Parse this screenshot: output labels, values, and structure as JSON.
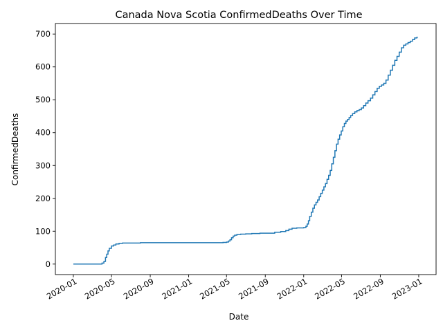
{
  "chart_data": {
    "type": "line",
    "title": "Canada Nova Scotia ConfirmedDeaths Over Time",
    "xlabel": "Date",
    "ylabel": "ConfirmedDeaths",
    "xlim": [
      "2019-11-05",
      "2023-02-25"
    ],
    "ylim": [
      -32,
      732
    ],
    "grid": false,
    "line_color": "#1f77b4",
    "xticks": [
      "2020-01",
      "2020-05",
      "2020-09",
      "2021-01",
      "2021-05",
      "2021-09",
      "2022-01",
      "2022-05",
      "2022-09",
      "2023-01"
    ],
    "yticks": [
      0,
      100,
      200,
      300,
      400,
      500,
      600,
      700
    ],
    "series": [
      {
        "x": [
          "2020-01-01",
          "2020-03-20",
          "2020-04-01",
          "2020-04-07",
          "2020-04-12",
          "2020-04-16",
          "2020-04-20",
          "2020-04-24",
          "2020-05-01",
          "2020-05-08",
          "2020-05-15",
          "2020-05-25",
          "2020-06-05",
          "2020-07-01",
          "2020-08-01",
          "2020-09-01",
          "2021-01-01",
          "2021-04-01",
          "2021-04-20",
          "2021-05-01",
          "2021-05-07",
          "2021-05-12",
          "2021-05-17",
          "2021-05-22",
          "2021-05-27",
          "2021-06-03",
          "2021-06-15",
          "2021-07-01",
          "2021-07-20",
          "2021-08-15",
          "2021-09-15",
          "2021-10-01",
          "2021-10-20",
          "2021-11-05",
          "2021-11-15",
          "2021-11-25",
          "2021-12-10",
          "2022-01-01",
          "2022-01-08",
          "2022-01-12",
          "2022-01-16",
          "2022-01-20",
          "2022-01-25",
          "2022-01-30",
          "2022-02-04",
          "2022-02-09",
          "2022-02-14",
          "2022-02-19",
          "2022-02-24",
          "2022-03-01",
          "2022-03-06",
          "2022-03-11",
          "2022-03-16",
          "2022-03-21",
          "2022-03-26",
          "2022-03-31",
          "2022-04-05",
          "2022-04-10",
          "2022-04-15",
          "2022-04-20",
          "2022-04-25",
          "2022-04-30",
          "2022-05-05",
          "2022-05-10",
          "2022-05-15",
          "2022-05-20",
          "2022-05-25",
          "2022-05-30",
          "2022-06-05",
          "2022-06-12",
          "2022-06-19",
          "2022-06-26",
          "2022-07-03",
          "2022-07-10",
          "2022-07-17",
          "2022-07-24",
          "2022-08-01",
          "2022-08-08",
          "2022-08-15",
          "2022-08-22",
          "2022-08-29",
          "2022-09-05",
          "2022-09-12",
          "2022-09-19",
          "2022-09-26",
          "2022-10-03",
          "2022-10-10",
          "2022-10-17",
          "2022-10-24",
          "2022-10-31",
          "2022-11-07",
          "2022-11-14",
          "2022-11-21",
          "2022-11-28",
          "2022-12-05",
          "2022-12-12",
          "2022-12-19",
          "2022-12-26",
          "2022-12-29"
        ],
        "values": [
          0,
          0,
          3,
          8,
          20,
          30,
          40,
          48,
          55,
          58,
          61,
          63,
          64,
          64,
          65,
          65,
          65,
          65,
          66,
          67,
          70,
          74,
          80,
          85,
          88,
          90,
          91,
          92,
          93,
          94,
          94,
          97,
          99,
          102,
          106,
          109,
          110,
          111,
          115,
          122,
          132,
          145,
          158,
          170,
          180,
          188,
          195,
          205,
          215,
          225,
          235,
          245,
          258,
          270,
          285,
          305,
          325,
          345,
          365,
          380,
          393,
          405,
          418,
          428,
          435,
          440,
          446,
          452,
          458,
          463,
          467,
          470,
          475,
          482,
          490,
          497,
          505,
          515,
          525,
          535,
          541,
          545,
          550,
          560,
          575,
          590,
          605,
          620,
          632,
          645,
          658,
          666,
          670,
          674,
          678,
          683,
          688,
          690,
          690
        ]
      }
    ]
  }
}
